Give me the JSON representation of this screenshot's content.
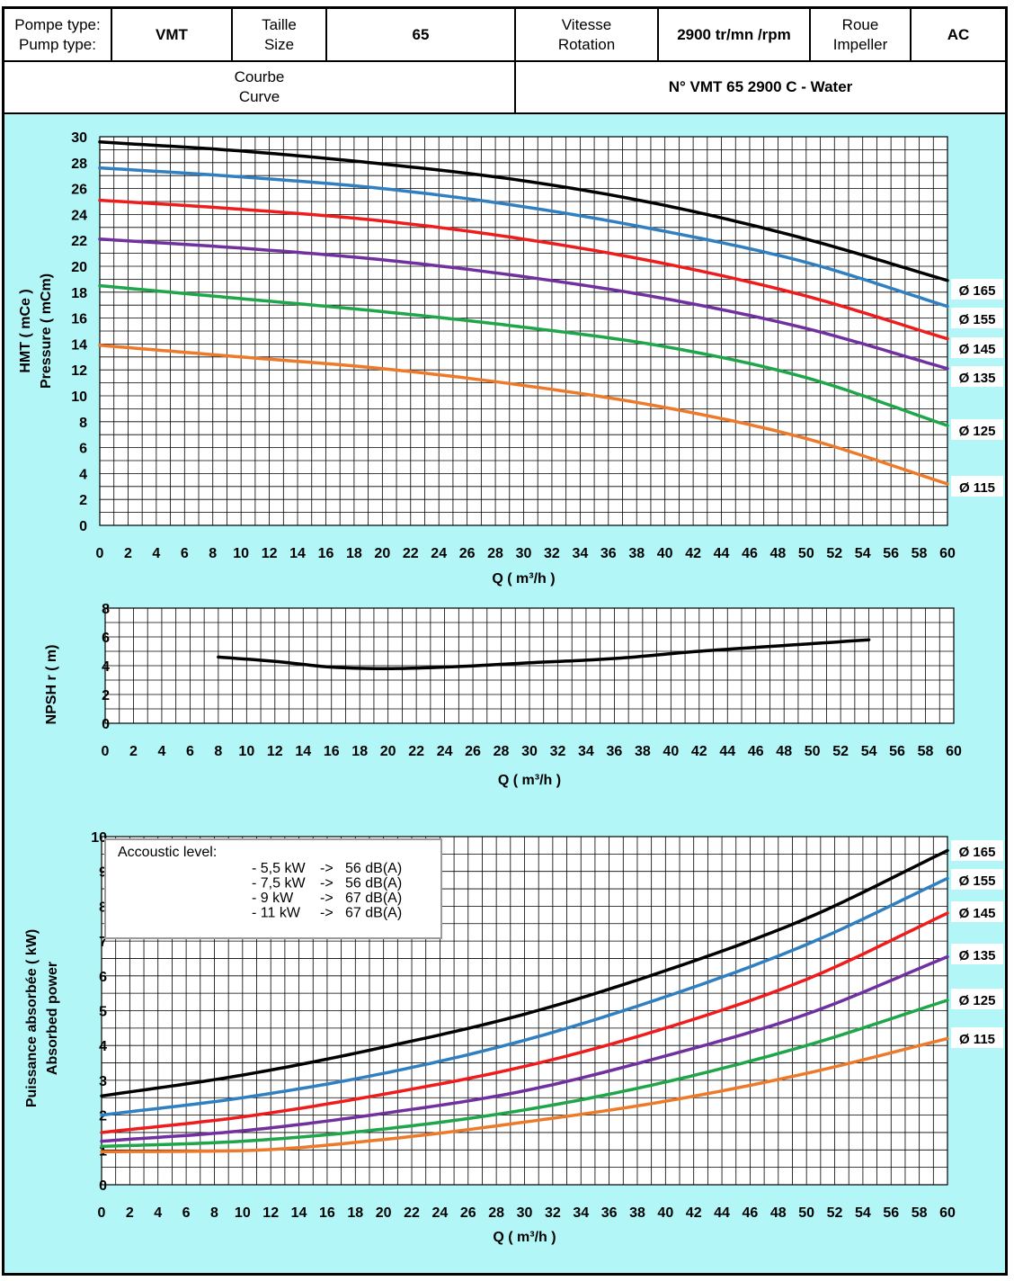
{
  "header": {
    "pump_type_label": [
      "Pompe type:",
      "Pump type:"
    ],
    "pump_type_value": "VMT",
    "size_label": [
      "Taille",
      "Size"
    ],
    "size_value": "65",
    "speed_label": [
      "Vitesse",
      "Rotation"
    ],
    "speed_value": "2900 tr/mn /rpm",
    "impeller_label": [
      "Roue",
      "Impeller"
    ],
    "impeller_value": "AC",
    "curve_label": [
      "Courbe",
      "Curve"
    ],
    "curve_value": "N° VMT 65 2900 C - Water"
  },
  "colors": {
    "background": "#b3f6f8",
    "165": "#000000",
    "155": "#2f7fc1",
    "145": "#ee1c1c",
    "135": "#7030a0",
    "125": "#1fa64a",
    "115": "#ed7a2a"
  },
  "chart_data": [
    {
      "type": "line",
      "xlabel": "Q ( m³/h )",
      "ylabel": [
        "HMT ( mCe )",
        "Pressure ( mCm)"
      ],
      "xlim": [
        0,
        60
      ],
      "ylim": [
        0,
        30
      ],
      "x_ticks": [
        0,
        2,
        4,
        6,
        8,
        10,
        12,
        14,
        16,
        18,
        20,
        22,
        24,
        26,
        28,
        30,
        32,
        34,
        36,
        38,
        40,
        42,
        44,
        46,
        48,
        50,
        52,
        54,
        56,
        58,
        60
      ],
      "y_ticks": [
        0,
        2,
        4,
        6,
        8,
        10,
        12,
        14,
        16,
        18,
        20,
        22,
        24,
        26,
        28,
        30
      ],
      "grid": true,
      "legend": "right-end labels",
      "x": [
        0,
        10,
        20,
        30,
        40,
        50,
        60
      ],
      "series": [
        {
          "name": "Ø 165",
          "color_key": "165",
          "values": [
            29.6,
            28.9,
            27.9,
            26.6,
            24.7,
            22.1,
            18.9
          ]
        },
        {
          "name": "Ø 155",
          "color_key": "155",
          "values": [
            27.6,
            26.9,
            26.0,
            24.6,
            22.7,
            20.3,
            16.9
          ]
        },
        {
          "name": "Ø 145",
          "color_key": "145",
          "values": [
            25.1,
            24.4,
            23.5,
            22.1,
            20.2,
            17.7,
            14.4
          ]
        },
        {
          "name": "Ø 135",
          "color_key": "135",
          "values": [
            22.1,
            21.4,
            20.5,
            19.2,
            17.5,
            15.2,
            12.1
          ]
        },
        {
          "name": "Ø 125",
          "color_key": "125",
          "values": [
            18.5,
            17.5,
            16.5,
            15.3,
            13.8,
            11.4,
            7.7
          ]
        },
        {
          "name": "Ø 115",
          "color_key": "115",
          "values": [
            13.9,
            13.0,
            12.1,
            10.8,
            9.1,
            6.7,
            3.2
          ]
        }
      ]
    },
    {
      "type": "line",
      "xlabel": "Q ( m³/h )",
      "ylabel": [
        "NPSH r ( m)"
      ],
      "xlim": [
        0,
        60
      ],
      "ylim": [
        0,
        8
      ],
      "x_ticks": [
        0,
        2,
        4,
        6,
        8,
        10,
        12,
        14,
        16,
        18,
        20,
        22,
        24,
        26,
        28,
        30,
        32,
        34,
        36,
        38,
        40,
        42,
        44,
        46,
        48,
        50,
        52,
        54,
        56,
        58,
        60
      ],
      "y_ticks": [
        0,
        2,
        4,
        6,
        8
      ],
      "grid": true,
      "x": [
        8,
        12,
        16,
        20,
        24,
        30,
        36,
        42,
        48,
        54
      ],
      "series": [
        {
          "color_key": "165",
          "values": [
            4.6,
            4.3,
            3.9,
            3.8,
            3.9,
            4.2,
            4.5,
            5.0,
            5.4,
            5.8
          ]
        }
      ]
    },
    {
      "type": "line",
      "xlabel": "Q ( m³/h )",
      "ylabel": [
        "Puissance absorbée ( kW)",
        "Absorbed power"
      ],
      "xlim": [
        0,
        60
      ],
      "ylim": [
        0,
        10
      ],
      "x_ticks": [
        0,
        2,
        4,
        6,
        8,
        10,
        12,
        14,
        16,
        18,
        20,
        22,
        24,
        26,
        28,
        30,
        32,
        34,
        36,
        38,
        40,
        42,
        44,
        46,
        48,
        50,
        52,
        54,
        56,
        58,
        60
      ],
      "y_ticks": [
        0,
        1,
        2,
        3,
        4,
        5,
        6,
        7,
        8,
        9,
        10
      ],
      "grid": true,
      "legend": "right-end labels",
      "x": [
        0,
        10,
        20,
        30,
        40,
        50,
        60
      ],
      "series": [
        {
          "name": "Ø 165",
          "color_key": "165",
          "values": [
            2.55,
            3.15,
            3.95,
            4.9,
            6.15,
            7.65,
            9.6
          ]
        },
        {
          "name": "Ø 155",
          "color_key": "155",
          "values": [
            2.0,
            2.5,
            3.2,
            4.15,
            5.4,
            6.9,
            8.8
          ]
        },
        {
          "name": "Ø 145",
          "color_key": "145",
          "values": [
            1.5,
            1.95,
            2.6,
            3.4,
            4.5,
            5.9,
            7.8
          ]
        },
        {
          "name": "Ø 135",
          "color_key": "135",
          "values": [
            1.25,
            1.55,
            2.05,
            2.7,
            3.7,
            4.9,
            6.55
          ]
        },
        {
          "name": "Ø 125",
          "color_key": "125",
          "values": [
            1.1,
            1.25,
            1.6,
            2.15,
            2.95,
            4.0,
            5.3
          ]
        },
        {
          "name": "Ø 115",
          "color_key": "115",
          "values": [
            0.95,
            0.98,
            1.3,
            1.8,
            2.4,
            3.2,
            4.2
          ]
        }
      ],
      "annotation": {
        "title": "Accoustic level:",
        "lines": [
          [
            "- 5,5 kW",
            "->",
            "56 dB(A)"
          ],
          [
            "- 7,5 kW",
            "->",
            "56 dB(A)"
          ],
          [
            "- 9 kW",
            "->",
            "67 dB(A)"
          ],
          [
            "- 11 kW",
            "->",
            "67 dB(A)"
          ]
        ]
      }
    }
  ]
}
